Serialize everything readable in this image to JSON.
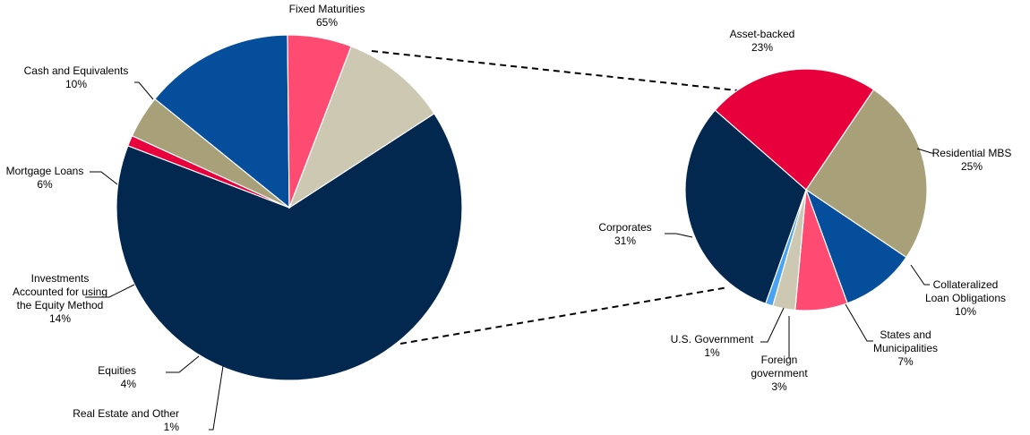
{
  "chart_data": [
    {
      "type": "pie",
      "title": "",
      "slices": [
        {
          "name_lines": [
            "Fixed Maturities"
          ],
          "label": "65%",
          "value": 65,
          "color": "#022850"
        },
        {
          "name_lines": [
            "Real Estate and Other"
          ],
          "label": "1%",
          "value": 1,
          "color": "#E8003C"
        },
        {
          "name_lines": [
            "Equities"
          ],
          "label": "4%",
          "value": 4,
          "color": "#A8A078"
        },
        {
          "name_lines": [
            "Investments",
            "Accounted for using",
            "the Equity Method"
          ],
          "label": "14%",
          "value": 14,
          "color": "#044E9C"
        },
        {
          "name_lines": [
            "Mortgage Loans"
          ],
          "label": "6%",
          "value": 6,
          "color": "#FF4A72"
        },
        {
          "name_lines": [
            "Cash and Equivalents"
          ],
          "label": "10%",
          "value": 10,
          "color": "#CDC8B2"
        }
      ]
    },
    {
      "type": "pie",
      "title": "",
      "breakdown_of": "Fixed Maturities",
      "slices": [
        {
          "name_lines": [
            "Residential MBS"
          ],
          "label": "25%",
          "value": 25,
          "color": "#A8A078"
        },
        {
          "name_lines": [
            "Collateralized",
            "Loan Obligations"
          ],
          "label": "10%",
          "value": 10,
          "color": "#044E9C"
        },
        {
          "name_lines": [
            "States and",
            "Municipalities"
          ],
          "label": "7%",
          "value": 7,
          "color": "#FF4A72"
        },
        {
          "name_lines": [
            "Foreign",
            "government"
          ],
          "label": "3%",
          "value": 3,
          "color": "#CDC8B2"
        },
        {
          "name_lines": [
            "U.S. Government"
          ],
          "label": "1%",
          "value": 1,
          "color": "#4AA3F0"
        },
        {
          "name_lines": [
            "Corporates"
          ],
          "label": "31%",
          "value": 31,
          "color": "#022850"
        },
        {
          "name_lines": [
            "Asset-backed"
          ],
          "label": "23%",
          "value": 23,
          "color": "#E8003C"
        }
      ]
    }
  ]
}
